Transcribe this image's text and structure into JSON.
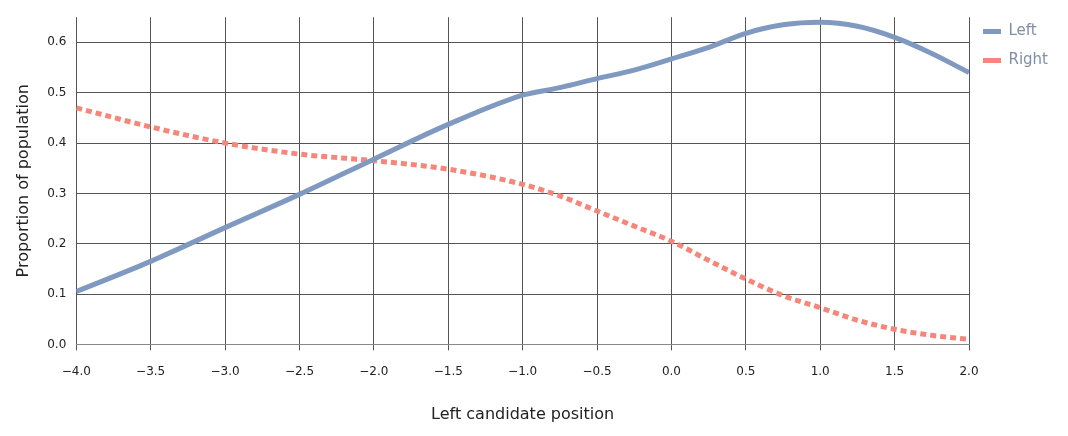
{
  "chart_data": {
    "type": "line",
    "xlabel": "Left candidate position",
    "ylabel": "Proportion of population",
    "x": [
      -4.0,
      -3.5,
      -3.0,
      -2.5,
      -2.0,
      -1.5,
      -1.0,
      -0.75,
      -0.5,
      -0.25,
      0.0,
      0.25,
      0.5,
      0.75,
      1.0,
      1.25,
      1.5,
      1.75,
      2.0
    ],
    "series": [
      {
        "name": "Left",
        "color": "#7f99c0",
        "line_style": "solid",
        "values": [
          0.105,
          0.165,
          0.232,
          0.298,
          0.368,
          0.437,
          0.495,
          0.51,
          0.528,
          0.545,
          0.567,
          0.59,
          0.618,
          0.635,
          0.64,
          0.632,
          0.61,
          0.578,
          0.54
        ]
      },
      {
        "name": "Right",
        "color": "#f4877a",
        "line_style": "dotted",
        "values": [
          0.47,
          0.432,
          0.4,
          0.378,
          0.365,
          0.348,
          0.318,
          0.295,
          0.265,
          0.235,
          0.205,
          0.167,
          0.13,
          0.097,
          0.073,
          0.048,
          0.03,
          0.018,
          0.01
        ]
      }
    ],
    "xlim": [
      -4.0,
      2.0
    ],
    "xticks": [
      {
        "value": -4,
        "label": "−4.0"
      },
      -3.5,
      {
        "value": -3,
        "label": "−3.0"
      },
      -2.5,
      {
        "value": -2,
        "label": "−2.0"
      },
      -1.5,
      {
        "value": -1,
        "label": "−1.0"
      },
      -0.5,
      {
        "value": 0,
        "label": "0.0"
      },
      0.5,
      {
        "value": 1,
        "label": "1.0"
      },
      1.5,
      {
        "value": 2,
        "label": "2.0"
      }
    ],
    "ylim": [
      0,
      0.65
    ],
    "yticks": [
      {
        "value": 0,
        "label": "0.0"
      },
      0.1,
      0.2,
      0.3,
      0.4,
      0.5,
      0.6
    ],
    "grid": true,
    "legend": "top right",
    "marker": "none"
  }
}
